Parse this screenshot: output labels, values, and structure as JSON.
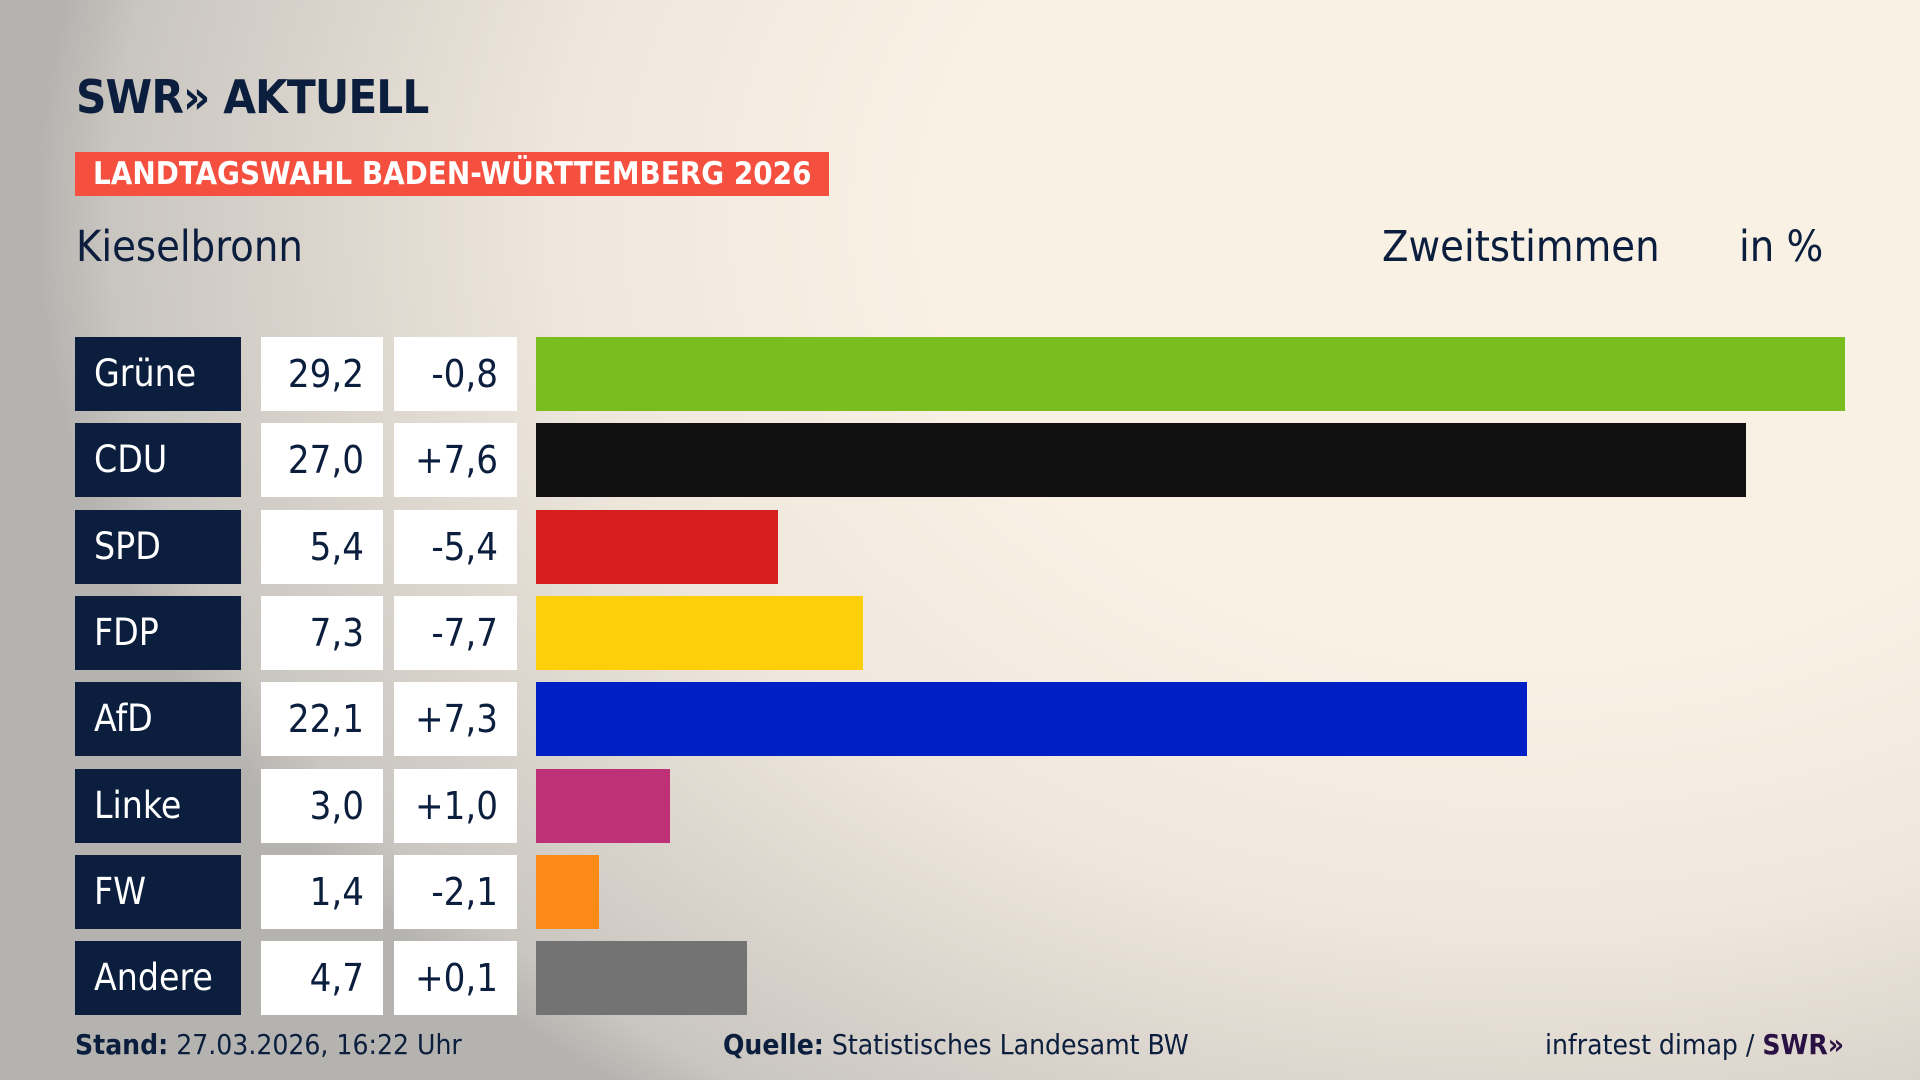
{
  "header": {
    "logo": "SWR» AKTUELL",
    "banner": "LANDTAGSWAHL BADEN-WÜRTTEMBERG 2026",
    "region": "Kieselbronn",
    "metric": "Zweitstimmen",
    "unit": "in %"
  },
  "chart_data": {
    "type": "bar",
    "orientation": "horizontal",
    "xlim": [
      0,
      29.2
    ],
    "categories": [
      "Grüne",
      "CDU",
      "SPD",
      "FDP",
      "AfD",
      "Linke",
      "FW",
      "Andere"
    ],
    "values": [
      29.2,
      27.0,
      5.4,
      7.3,
      22.1,
      3.0,
      1.4,
      4.7
    ],
    "value_labels": [
      "29,2",
      "27,0",
      "5,4",
      "7,3",
      "22,1",
      "3,0",
      "1,4",
      "4,7"
    ],
    "diff_labels": [
      "-0,8",
      "+7,6",
      "-5,4",
      "-7,7",
      "+7,3",
      "+1,0",
      "-2,1",
      "+0,1"
    ],
    "diffs": [
      -0.8,
      7.6,
      -5.4,
      -7.7,
      7.3,
      1.0,
      -2.1,
      0.1
    ],
    "colors": [
      "#7abd1e",
      "#111111",
      "#d71f1f",
      "#fccf0a",
      "#0020c6",
      "#bf3176",
      "#fb8b16",
      "#737373"
    ]
  },
  "footer": {
    "stand_label": "Stand:",
    "stand_value": "27.03.2026, 16:22 Uhr",
    "source_label": "Quelle:",
    "source_value": "Statistisches Landesamt BW",
    "credit": "infratest dimap / ",
    "credit_logo": "SWR»"
  }
}
